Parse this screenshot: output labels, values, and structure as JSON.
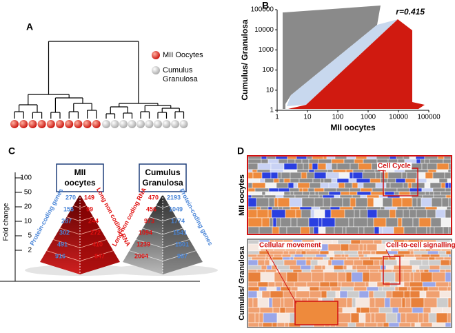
{
  "panels": {
    "a": {
      "label": "A",
      "legend": [
        {
          "lines": [
            "MII Oocytes"
          ]
        },
        {
          "lines": [
            "Cumulus",
            "Granulosa"
          ]
        }
      ]
    },
    "b": {
      "label": "B",
      "y_label": "Cumulus/ Granulosa",
      "x_label": "MII oocytes",
      "annotation": "r=0.415",
      "scale": "log",
      "xlim": [
        1,
        100000
      ],
      "ylim": [
        1,
        100000
      ],
      "xticks": [
        1,
        10,
        100,
        1000,
        10000,
        100000
      ],
      "yticks": [
        1,
        10,
        100,
        1000,
        10000,
        100000
      ]
    },
    "c": {
      "label": "C",
      "axis_title": "Fold change",
      "ticks": [
        100,
        50,
        20,
        10,
        5,
        2
      ],
      "pyramids": [
        {
          "title": [
            "MII",
            "oocytes"
          ],
          "left_label": "Protein-coding genes",
          "right_label": "Long non coding RNA",
          "left_values": [
            270,
            155,
            287,
            302,
            491,
            916
          ],
          "right_values": [
            149,
            99,
            244,
            272,
            410,
            847
          ]
        },
        {
          "title": [
            "Cumulus",
            "Granulosa"
          ],
          "left_label": "Long non coding RNA",
          "right_label": "Protein-coding genes",
          "left_values": [
            470,
            456,
            973,
            1094,
            1239,
            2004
          ],
          "right_values": [
            2193,
            1049,
            1774,
            1541,
            1501,
            987
          ]
        }
      ]
    },
    "d": {
      "label": "D",
      "rows": [
        "MII oocytes",
        "Cumulus/ Granulosa"
      ],
      "annotations": [
        "Cell Cycle",
        "Cellular movement",
        "Cell-to-cell signalling"
      ]
    }
  }
}
